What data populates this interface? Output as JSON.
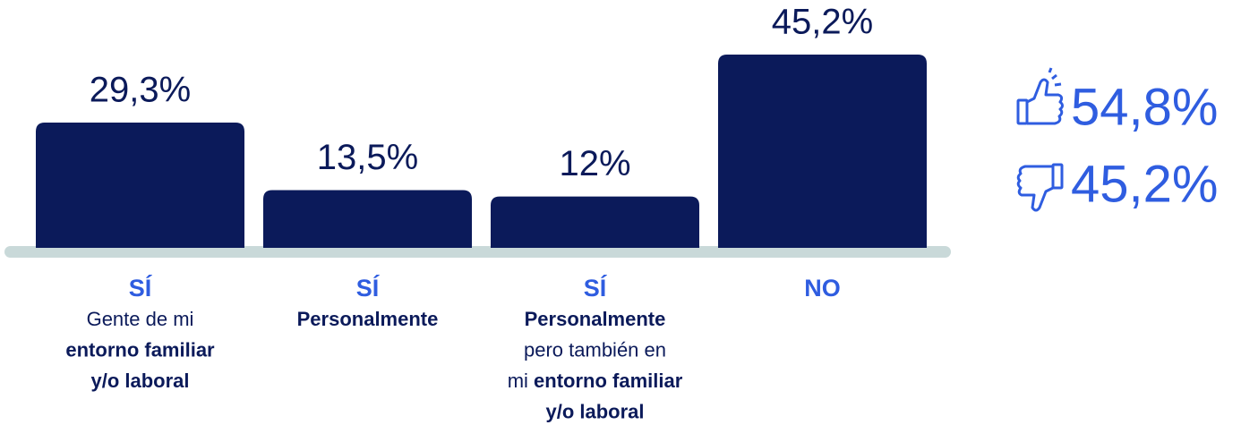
{
  "chart_data": {
    "type": "bar",
    "categories": [
      "SÍ",
      "SÍ",
      "SÍ",
      "NO"
    ],
    "values": [
      29.3,
      13.5,
      12,
      45.2
    ],
    "value_labels": [
      "29,3%",
      "13,5%",
      "12%",
      "45,2%"
    ],
    "color": "#0b1a5a",
    "category_color": "#2f5de0",
    "descriptions": [
      [
        [
          {
            "text": "Gente de mi",
            "bold": false
          }
        ],
        [
          {
            "text": "entorno familiar",
            "bold": true
          }
        ],
        [
          {
            "text": "y/o laboral",
            "bold": true
          }
        ]
      ],
      [
        [
          {
            "text": "Personalmente",
            "bold": true
          }
        ]
      ],
      [
        [
          {
            "text": "Personalmente",
            "bold": true
          }
        ],
        [
          {
            "text": "pero también en",
            "bold": false
          }
        ],
        [
          {
            "text": "mi ",
            "bold": false
          },
          {
            "text": "entorno familiar",
            "bold": true
          }
        ],
        [
          {
            "text": "y/o laboral",
            "bold": true
          }
        ]
      ],
      []
    ],
    "summary": {
      "positive": "54,8%",
      "negative": "45,2%"
    }
  }
}
